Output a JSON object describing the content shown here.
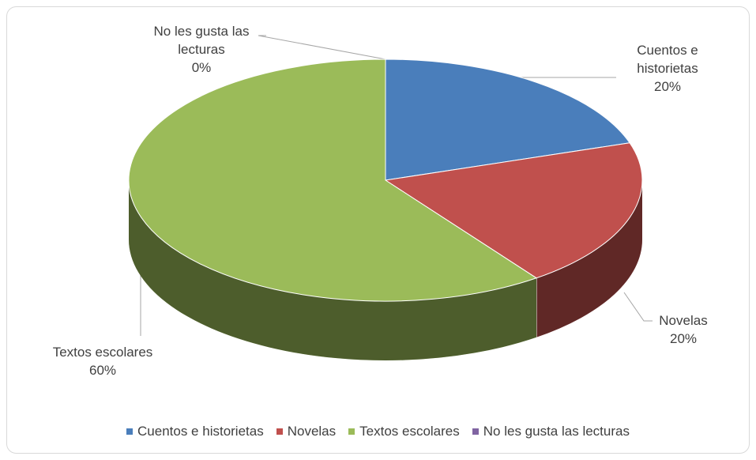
{
  "chart_data": {
    "type": "pie",
    "style": "3d",
    "categories": [
      "Cuentos e historietas",
      "Novelas",
      "Textos escolares",
      "No les gusta las lecturas"
    ],
    "values": [
      20,
      20,
      60,
      0
    ],
    "value_labels": [
      "20%",
      "20%",
      "60%",
      "0%"
    ],
    "colors": [
      "#4a7ebb",
      "#c0504d",
      "#9bbb59",
      "#8064a2"
    ],
    "legend": "bottom"
  }
}
